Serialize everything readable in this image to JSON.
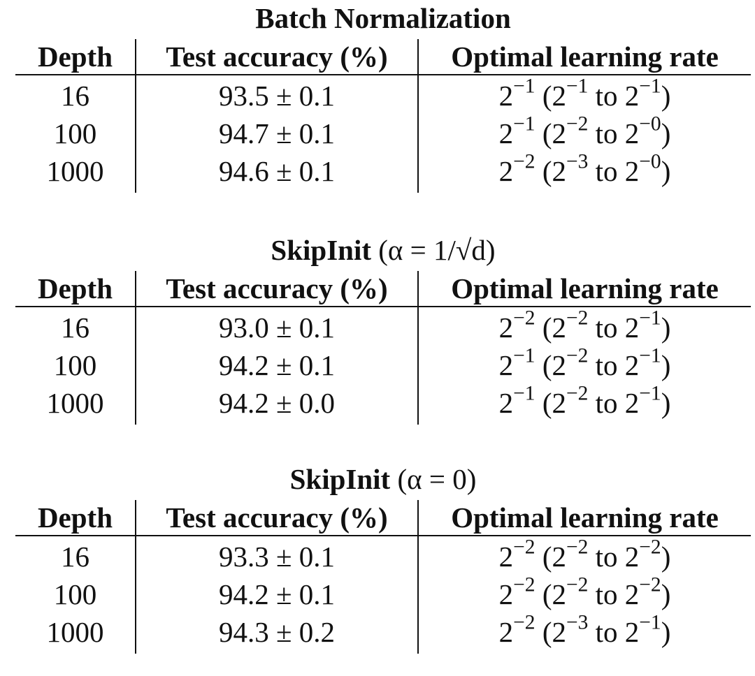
{
  "tables": [
    {
      "title_bold": "Batch Normalization",
      "title_math": "",
      "headers": [
        "Depth",
        "Test accuracy (%)",
        "Optimal learning rate"
      ],
      "rows": [
        {
          "depth": "16",
          "acc": "93.5 ± 0.1",
          "lr_main": "−1",
          "lr_from": "−1",
          "lr_to": "−1"
        },
        {
          "depth": "100",
          "acc": "94.7 ± 0.1",
          "lr_main": "−1",
          "lr_from": "−2",
          "lr_to": "−0"
        },
        {
          "depth": "1000",
          "acc": "94.6 ± 0.1",
          "lr_main": "−2",
          "lr_from": "−3",
          "lr_to": "−0"
        }
      ]
    },
    {
      "title_bold": "SkipInit",
      "title_math": "(α = 1/√d)",
      "headers": [
        "Depth",
        "Test accuracy (%)",
        "Optimal learning rate"
      ],
      "rows": [
        {
          "depth": "16",
          "acc": "93.0 ± 0.1",
          "lr_main": "−2",
          "lr_from": "−2",
          "lr_to": "−1"
        },
        {
          "depth": "100",
          "acc": "94.2 ± 0.1",
          "lr_main": "−1",
          "lr_from": "−2",
          "lr_to": "−1"
        },
        {
          "depth": "1000",
          "acc": "94.2 ± 0.0",
          "lr_main": "−1",
          "lr_from": "−2",
          "lr_to": "−1"
        }
      ]
    },
    {
      "title_bold": "SkipInit",
      "title_math": "(α = 0)",
      "headers": [
        "Depth",
        "Test accuracy (%)",
        "Optimal learning rate"
      ],
      "rows": [
        {
          "depth": "16",
          "acc": "93.3 ± 0.1",
          "lr_main": "−2",
          "lr_from": "−2",
          "lr_to": "−2"
        },
        {
          "depth": "100",
          "acc": "94.2 ± 0.1",
          "lr_main": "−2",
          "lr_from": "−2",
          "lr_to": "−2"
        },
        {
          "depth": "1000",
          "acc": "94.3 ± 0.2",
          "lr_main": "−2",
          "lr_from": "−3",
          "lr_to": "−1"
        }
      ]
    }
  ],
  "lr_base": "2",
  "lr_range_word": "to"
}
